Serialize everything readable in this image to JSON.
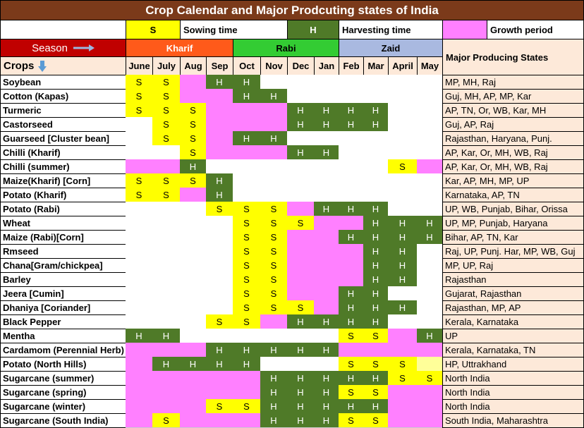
{
  "header": {
    "title": "Crop Calendar and Major Prodcuting states of India"
  },
  "legend": [
    {
      "symbol": "S",
      "label": "Sowing time",
      "color": "#ffff00"
    },
    {
      "symbol": "H",
      "label": "Harvesting time",
      "color": "#4f7a28"
    },
    {
      "label": "Growth period",
      "color": "#ff80ff"
    }
  ],
  "cell_colors": {
    "S": "#ffff00",
    "H": "#4f7a28",
    "P": "#ff80ff",
    "Y": "#ffff99"
  },
  "table": {
    "season_label": "Season",
    "crops_label": "Crops",
    "states_header": "Major Producing States",
    "seasons": [
      {
        "name": "Kharif",
        "span": 4,
        "color": "#ff5a1a"
      },
      {
        "name": "Rabi",
        "span": 4,
        "color": "#33cc33"
      },
      {
        "name": "Zaid",
        "span": 4,
        "color": "#a9b9e0"
      }
    ],
    "months": [
      "June",
      "July",
      "Aug",
      "Sep",
      "Oct",
      "Nov",
      "Dec",
      "Jan",
      "Feb",
      "Mar",
      "April",
      "May"
    ],
    "rows": [
      {
        "crop": "Soybean",
        "cells": [
          "S",
          "S",
          "P",
          "H",
          "H",
          null,
          null,
          null,
          null,
          null,
          null,
          null
        ],
        "states": "MP, MH, Raj"
      },
      {
        "crop": "Cotton (Kapas)",
        "cells": [
          "S",
          "S",
          "P",
          "P",
          "H",
          "H",
          null,
          null,
          null,
          null,
          null,
          null
        ],
        "states": "Guj, MH, AP, MP, Kar"
      },
      {
        "crop": "Turmeric",
        "cells": [
          "S",
          "S",
          "S",
          "P",
          "P",
          "P",
          "H",
          "H",
          "H",
          "H",
          null,
          null
        ],
        "states": "AP, TN, Or, WB, Kar, MH"
      },
      {
        "crop": "Castorseed",
        "cells": [
          null,
          "S",
          "S",
          "P",
          "P",
          "P",
          "H",
          "H",
          "H",
          "H",
          null,
          null
        ],
        "states": "Guj, AP, Raj"
      },
      {
        "crop": "Guarseed [Cluster bean]",
        "cells": [
          null,
          "S",
          "S",
          "P",
          "H",
          "H",
          null,
          null,
          null,
          null,
          null,
          null
        ],
        "states": "Rajasthan, Haryana, Punj."
      },
      {
        "crop": "Chilli (Kharif)",
        "cells": [
          null,
          null,
          "S",
          "P",
          "P",
          "P",
          "H",
          "H",
          null,
          null,
          null,
          null
        ],
        "states": "AP, Kar, Or, MH, WB, Raj"
      },
      {
        "crop": "Chilli (summer)",
        "cells": [
          "P",
          "P",
          "H",
          null,
          null,
          null,
          null,
          null,
          null,
          null,
          "S",
          "P"
        ],
        "states": "AP, Kar, Or, MH, WB, Raj"
      },
      {
        "crop": "Maize(Kharif) [Corn]",
        "cells": [
          "S",
          "S",
          "S",
          "H",
          null,
          null,
          null,
          null,
          null,
          null,
          null,
          null
        ],
        "states": "Kar, AP, MH, MP, UP"
      },
      {
        "crop": "Potato (Kharif)",
        "cells": [
          "S",
          "S",
          "P",
          "H",
          null,
          null,
          null,
          null,
          null,
          null,
          null,
          null
        ],
        "states": "Karnataka, AP, TN"
      },
      {
        "crop": "Potato (Rabi)",
        "cells": [
          null,
          null,
          null,
          "S",
          "S",
          "S",
          "P",
          "H",
          "H",
          "H",
          null,
          null
        ],
        "states": "UP, WB, Punjab, Bihar, Orissa"
      },
      {
        "crop": "Wheat",
        "cells": [
          null,
          null,
          null,
          null,
          "S",
          "S",
          "S",
          "P",
          "P",
          "H",
          "H",
          "H"
        ],
        "states": "UP, MP, Punjab, Haryana"
      },
      {
        "crop": "Maize (Rabi)[Corn]",
        "cells": [
          null,
          null,
          null,
          null,
          "S",
          "S",
          "P",
          "P",
          "H",
          "H",
          "H",
          "H"
        ],
        "states": "Bihar, AP, TN, Kar"
      },
      {
        "crop": "Rmseed",
        "cells": [
          null,
          null,
          null,
          null,
          "S",
          "S",
          "P",
          "P",
          "P",
          "H",
          "H",
          null
        ],
        "states": "Raj, UP, Punj. Har, MP, WB, Guj"
      },
      {
        "crop": "Chana[Gram/chickpea]",
        "cells": [
          null,
          null,
          null,
          null,
          "S",
          "S",
          "P",
          "P",
          "P",
          "H",
          "H",
          null
        ],
        "states": "MP, UP, Raj"
      },
      {
        "crop": "Barley",
        "cells": [
          null,
          null,
          null,
          null,
          "S",
          "S",
          "P",
          "P",
          "P",
          "H",
          "H",
          null
        ],
        "states": "Rajasthan"
      },
      {
        "crop": "Jeera [Cumin]",
        "cells": [
          null,
          null,
          null,
          null,
          "S",
          "S",
          "P",
          "P",
          "H",
          "H",
          null,
          null
        ],
        "states": "Gujarat, Rajasthan"
      },
      {
        "crop": "Dhaniya [Coriander]",
        "cells": [
          null,
          null,
          null,
          null,
          "S",
          "S",
          "S",
          "P",
          "H",
          "H",
          "H",
          null
        ],
        "states": "Rajasthan, MP, AP"
      },
      {
        "crop": "Black Pepper",
        "cells": [
          null,
          null,
          null,
          "S",
          "S",
          "P",
          "H",
          "H",
          "H",
          "H",
          null,
          null
        ],
        "states": "Kerala, Karnataka"
      },
      {
        "crop": "Mentha",
        "cells": [
          "H",
          "H",
          null,
          null,
          null,
          null,
          null,
          null,
          "S",
          "S",
          "P",
          "H"
        ],
        "states": "UP"
      },
      {
        "crop": "Cardamom (Perennial Herb)",
        "cells": [
          "P",
          "P",
          "P",
          "H",
          "H",
          "H",
          "H",
          "H",
          "P",
          "P",
          "P",
          "P"
        ],
        "states": "Kerala, Karnataka, TN"
      },
      {
        "crop": "Potato (North Hills)",
        "cells": [
          "P",
          "H",
          "H",
          "H",
          "H",
          null,
          null,
          null,
          "S",
          "S",
          "S",
          "Y"
        ],
        "states": "HP, Uttrakhand"
      },
      {
        "crop": "Sugarcane (summer)",
        "cells": [
          "P",
          "P",
          "P",
          "P",
          "P",
          "H",
          "H",
          "H",
          "H",
          "H",
          "S",
          "S"
        ],
        "states": "North India"
      },
      {
        "crop": "Sugarcane (spring)",
        "cells": [
          "P",
          "P",
          "P",
          "P",
          "P",
          "H",
          "H",
          "H",
          "S",
          "S",
          "P",
          "P"
        ],
        "states": "North India"
      },
      {
        "crop": "Sugarcane (winter)",
        "cells": [
          "P",
          "P",
          "P",
          "S",
          "S",
          "H",
          "H",
          "H",
          "H",
          "H",
          "P",
          "P"
        ],
        "states": "North India"
      },
      {
        "crop": "Sugarcane (South India)",
        "cells": [
          "P",
          "S",
          "P",
          "P",
          "P",
          "H",
          "H",
          "H",
          "S",
          "S",
          "P",
          "P"
        ],
        "states": "South India, Maharashtra"
      }
    ]
  }
}
